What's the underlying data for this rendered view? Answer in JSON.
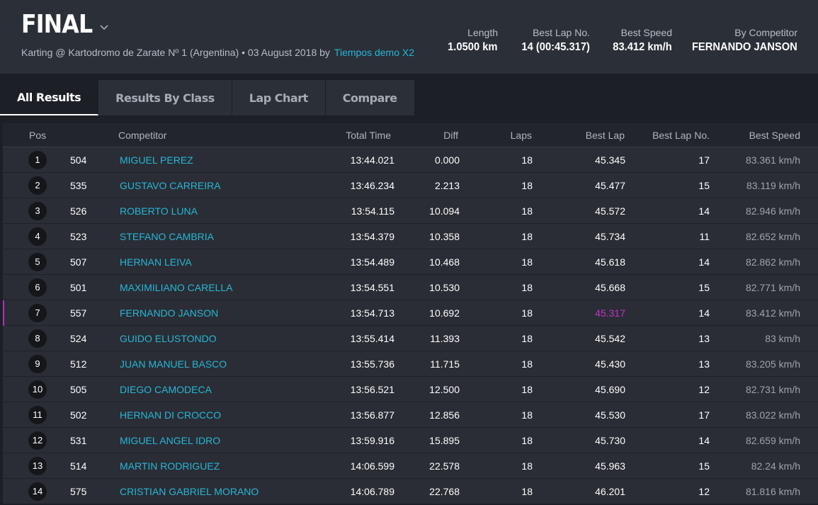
{
  "header": {
    "title": "FINAL",
    "subtitle": "Karting @ Kartodromo de Zarate Nº 1 (Argentina) • 03 August 2018 by",
    "subtitle_link": "Tiempos demo X2",
    "stats": [
      {
        "label": "Length",
        "value": "1.0500 km"
      },
      {
        "label": "Best Lap No.",
        "value": "14 (00:45.317)"
      },
      {
        "label": "Best Speed",
        "value": "83.412 km/h"
      },
      {
        "label": "By Competitor",
        "value": "FERNANDO JANSON"
      }
    ]
  },
  "tabs": [
    "All Results",
    "Results By Class",
    "Lap Chart",
    "Compare"
  ],
  "columns": [
    "Pos",
    "Competitor",
    "Total Time",
    "Diff",
    "Laps",
    "Best Lap",
    "Best Lap No.",
    "Best Speed"
  ],
  "rows": [
    {
      "pos": "1",
      "num": "504",
      "name": "MIGUEL PEREZ",
      "total": "13:44.021",
      "diff": "0.000",
      "laps": "18",
      "best": "45.345",
      "bestno": "17",
      "speed": "83.361 km/h"
    },
    {
      "pos": "2",
      "num": "535",
      "name": "GUSTAVO CARREIRA",
      "total": "13:46.234",
      "diff": "2.213",
      "laps": "18",
      "best": "45.477",
      "bestno": "15",
      "speed": "83.119 km/h"
    },
    {
      "pos": "3",
      "num": "526",
      "name": "ROBERTO LUNA",
      "total": "13:54.115",
      "diff": "10.094",
      "laps": "18",
      "best": "45.572",
      "bestno": "14",
      "speed": "82.946 km/h"
    },
    {
      "pos": "4",
      "num": "523",
      "name": "STEFANO CAMBRIA",
      "total": "13:54.379",
      "diff": "10.358",
      "laps": "18",
      "best": "45.734",
      "bestno": "11",
      "speed": "82.652 km/h"
    },
    {
      "pos": "5",
      "num": "507",
      "name": "HERNAN LEIVA",
      "total": "13:54.489",
      "diff": "10.468",
      "laps": "18",
      "best": "45.618",
      "bestno": "14",
      "speed": "82.862 km/h"
    },
    {
      "pos": "6",
      "num": "501",
      "name": "MAXIMILIANO CARELLA",
      "total": "13:54.551",
      "diff": "10.530",
      "laps": "18",
      "best": "45.668",
      "bestno": "15",
      "speed": "82.771 km/h"
    },
    {
      "pos": "7",
      "num": "557",
      "name": "FERNANDO JANSON",
      "total": "13:54.713",
      "diff": "10.692",
      "laps": "18",
      "best": "45.317",
      "bestno": "14",
      "speed": "83.412 km/h",
      "highlight": true
    },
    {
      "pos": "8",
      "num": "524",
      "name": "GUIDO ELUSTONDO",
      "total": "13:55.414",
      "diff": "11.393",
      "laps": "18",
      "best": "45.542",
      "bestno": "13",
      "speed": "83 km/h"
    },
    {
      "pos": "9",
      "num": "512",
      "name": "JUAN MANUEL BASCO",
      "total": "13:55.736",
      "diff": "11.715",
      "laps": "18",
      "best": "45.430",
      "bestno": "13",
      "speed": "83.205 km/h"
    },
    {
      "pos": "10",
      "num": "505",
      "name": "DIEGO CAMODECA",
      "total": "13:56.521",
      "diff": "12.500",
      "laps": "18",
      "best": "45.690",
      "bestno": "12",
      "speed": "82.731 km/h"
    },
    {
      "pos": "11",
      "num": "502",
      "name": "HERNAN DI CROCCO",
      "total": "13:56.877",
      "diff": "12.856",
      "laps": "18",
      "best": "45.530",
      "bestno": "17",
      "speed": "83.022 km/h"
    },
    {
      "pos": "12",
      "num": "531",
      "name": "MIGUEL ANGEL IDRO",
      "total": "13:59.916",
      "diff": "15.895",
      "laps": "18",
      "best": "45.730",
      "bestno": "14",
      "speed": "82.659 km/h"
    },
    {
      "pos": "13",
      "num": "514",
      "name": "MARTIN RODRIGUEZ",
      "total": "14:06.599",
      "diff": "22.578",
      "laps": "18",
      "best": "45.963",
      "bestno": "15",
      "speed": "82.24 km/h"
    },
    {
      "pos": "14",
      "num": "575",
      "name": "CRISTIAN GABRIEL MORANO",
      "total": "14:06.789",
      "diff": "22.768",
      "laps": "18",
      "best": "46.201",
      "bestno": "12",
      "speed": "81.816 km/h"
    }
  ],
  "colors": {
    "link": "#27b6d6",
    "best_lap_highlight": "#c233c9",
    "row_marker": "#b52bd0"
  }
}
